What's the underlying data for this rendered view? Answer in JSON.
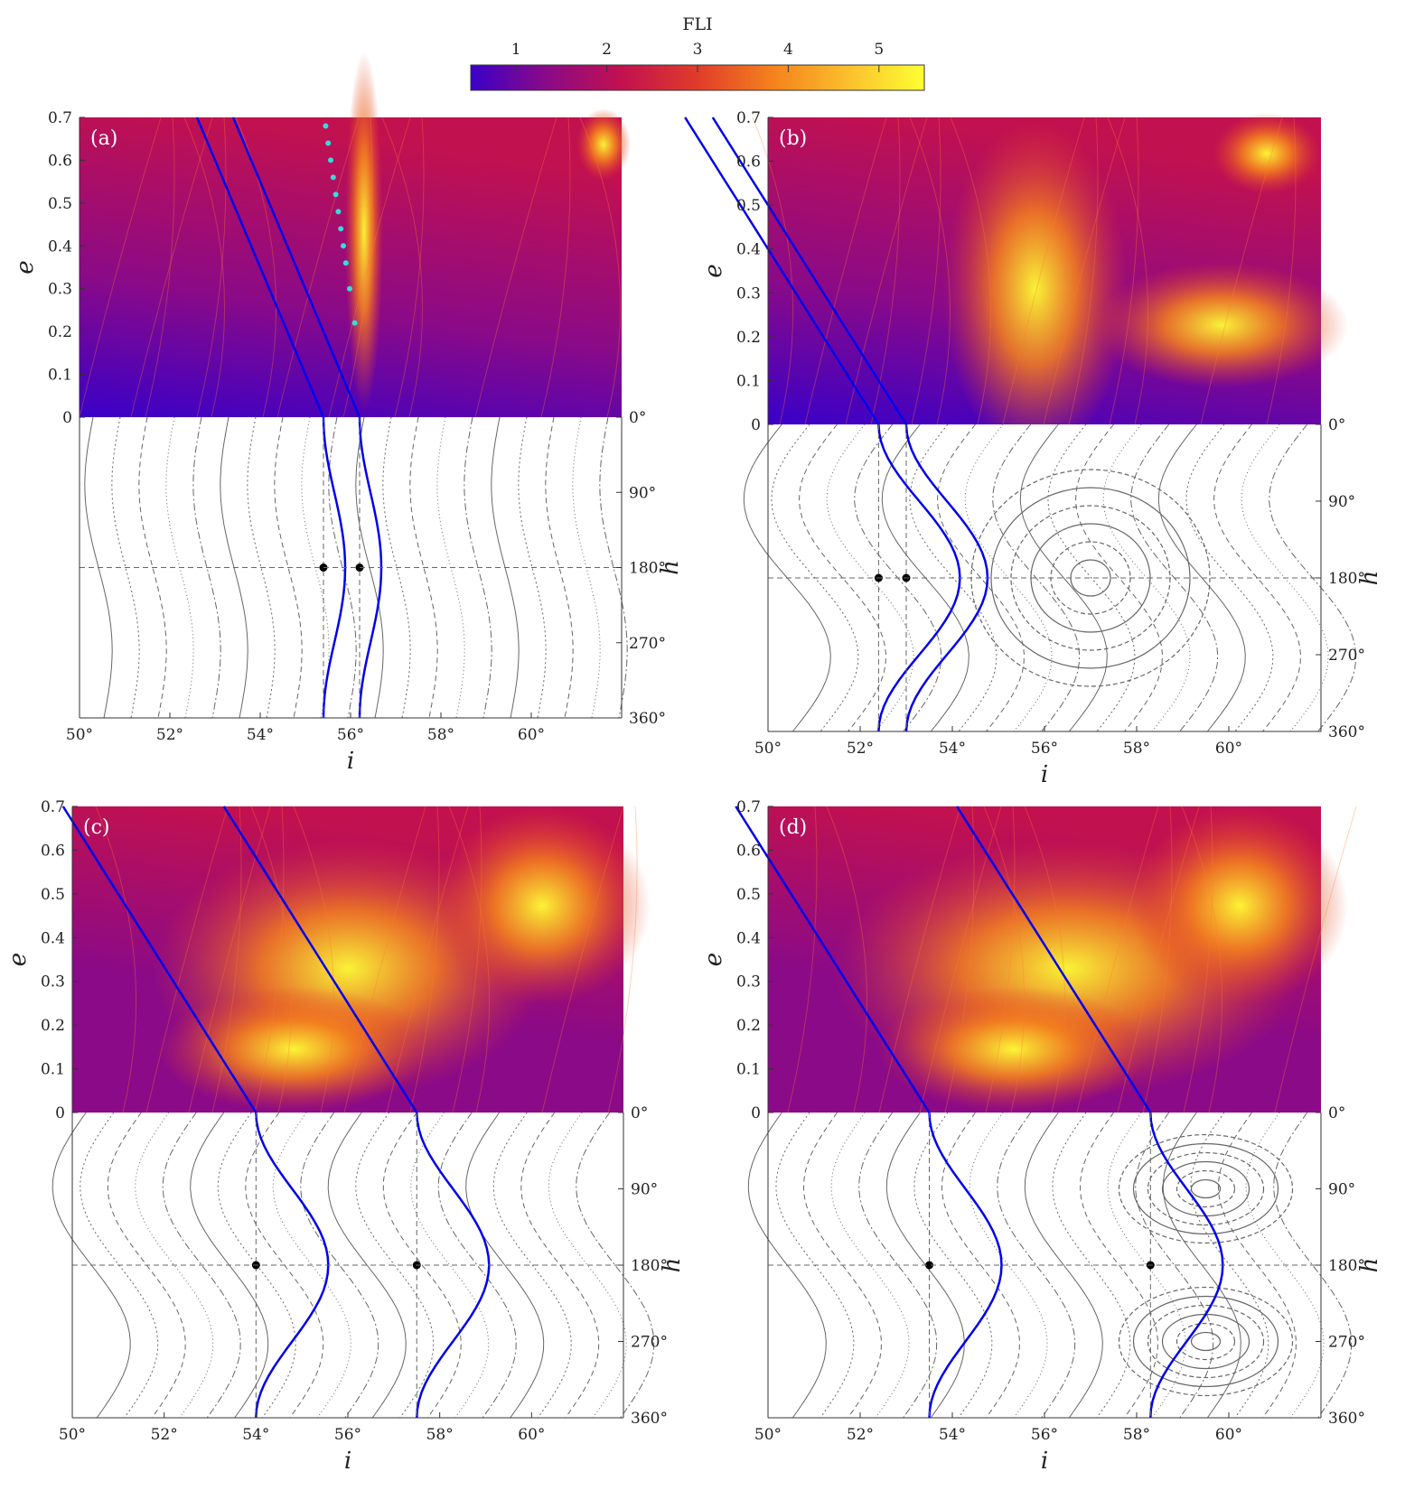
{
  "colorbar": {
    "title": "FLI",
    "ticks": [
      1,
      2,
      3,
      4,
      5
    ],
    "range": [
      0.5,
      5.5
    ],
    "colormap": [
      "#3a00c8",
      "#8b0a87",
      "#c2114f",
      "#e03c2a",
      "#f5821c",
      "#fbc02d",
      "#ffff33"
    ]
  },
  "colors": {
    "curve_blue": "#0000ee",
    "guide_gray": "#666666",
    "point": "#000000",
    "marker_cyan": "#33dddd"
  },
  "chart_data": [
    {
      "type": "heatmap",
      "label": "(a)",
      "xlabel": "i",
      "ylabel_top": "e",
      "ylabel_bottom": "h",
      "xlim": [
        50,
        62
      ],
      "ylim_top": [
        0,
        0.7
      ],
      "ylim_bottom": [
        0,
        360
      ],
      "x_ticks": [
        "50°",
        "52°",
        "54°",
        "56°",
        "58°",
        "60°"
      ],
      "y_ticks_top": [
        "0",
        "0.1",
        "0.2",
        "0.3",
        "0.4",
        "0.5",
        "0.6",
        "0.7"
      ],
      "y_ticks_bottom": [
        "0°",
        "90°",
        "180°",
        "270°",
        "360°"
      ],
      "critical_points": [
        {
          "i": 55.4,
          "h": 180
        },
        {
          "i": 56.2,
          "h": 180
        }
      ],
      "chaos_band": {
        "i": 56.3,
        "width": 0.6
      },
      "fli_level": 0.25,
      "cyan_markers_e": [
        0.22,
        0.3,
        0.36,
        0.4,
        0.44,
        0.48,
        0.52,
        0.56,
        0.6,
        0.64,
        0.68
      ]
    },
    {
      "type": "heatmap",
      "label": "(b)",
      "xlabel": "i",
      "ylabel_top": "e",
      "ylabel_bottom": "h",
      "xlim": [
        50,
        62
      ],
      "ylim_top": [
        0,
        0.7
      ],
      "ylim_bottom": [
        0,
        360
      ],
      "x_ticks": [
        "50°",
        "52°",
        "54°",
        "56°",
        "58°",
        "60°"
      ],
      "y_ticks_top": [
        "0",
        "0.1",
        "0.2",
        "0.3",
        "0.4",
        "0.5",
        "0.6",
        "0.7"
      ],
      "y_ticks_bottom": [
        "0°",
        "90°",
        "180°",
        "270°",
        "360°"
      ],
      "critical_points": [
        {
          "i": 52.4,
          "h": 180
        },
        {
          "i": 53.0,
          "h": 180
        }
      ],
      "chaos_band": {
        "i": 55.8,
        "width": 2.5
      },
      "fli_level": 0.45,
      "island": {
        "i": 57.0,
        "h": 180
      }
    },
    {
      "type": "heatmap",
      "label": "(c)",
      "xlabel": "i",
      "ylabel_top": "e",
      "ylabel_bottom": "h",
      "xlim": [
        50,
        62
      ],
      "ylim_top": [
        0,
        0.7
      ],
      "ylim_bottom": [
        0,
        360
      ],
      "x_ticks": [
        "50°",
        "52°",
        "54°",
        "56°",
        "58°",
        "60°"
      ],
      "y_ticks_top": [
        "0",
        "0.1",
        "0.2",
        "0.3",
        "0.4",
        "0.5",
        "0.6",
        "0.7"
      ],
      "y_ticks_bottom": [
        "0°",
        "90°",
        "180°",
        "270°",
        "360°"
      ],
      "critical_points": [
        {
          "i": 54.0,
          "h": 180
        },
        {
          "i": 57.5,
          "h": 180
        }
      ],
      "chaos_band": {
        "i": 56.0,
        "width": 5
      },
      "fli_level": 0.7
    },
    {
      "type": "heatmap",
      "label": "(d)",
      "xlabel": "i",
      "ylabel_top": "e",
      "ylabel_bottom": "h",
      "xlim": [
        50,
        62
      ],
      "ylim_top": [
        0,
        0.7
      ],
      "ylim_bottom": [
        0,
        360
      ],
      "x_ticks": [
        "50°",
        "52°",
        "54°",
        "56°",
        "58°",
        "60°"
      ],
      "y_ticks_top": [
        "0",
        "0.1",
        "0.2",
        "0.3",
        "0.4",
        "0.5",
        "0.6",
        "0.7"
      ],
      "y_ticks_bottom": [
        "0°",
        "90°",
        "180°",
        "270°",
        "360°"
      ],
      "critical_points": [
        {
          "i": 53.5,
          "h": 180
        },
        {
          "i": 58.3,
          "h": 180
        }
      ],
      "chaos_band": {
        "i": 56.5,
        "width": 6
      },
      "fli_level": 0.8,
      "islands": [
        {
          "i": 59.5,
          "h": 90
        },
        {
          "i": 59.5,
          "h": 270
        }
      ]
    }
  ]
}
